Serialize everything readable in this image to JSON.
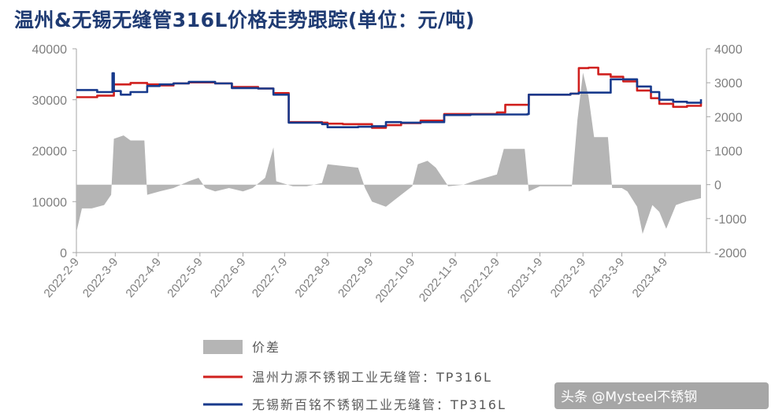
{
  "title": "温州&无锡无缝管316L价格走势跟踪(单位：元/吨)",
  "watermark": "头条 @Mysteel不锈钢",
  "colors": {
    "wenzhou": "#d0201e",
    "wuxi": "#183a8c",
    "diff": "#b5b5b5",
    "axis": "#a6a6a6"
  },
  "chart_data": {
    "type": "line",
    "y_left": {
      "min": 0,
      "max": 40000,
      "ticks": [
        0,
        10000,
        20000,
        30000,
        40000
      ]
    },
    "y_right": {
      "min": -2000,
      "max": 4000,
      "ticks": [
        -2000,
        -1000,
        0,
        1000,
        2000,
        3000,
        4000
      ]
    },
    "x_tick_labels": [
      "2022-2-9",
      "2022-3-9",
      "2022-4-9",
      "2022-5-9",
      "2022-6-9",
      "2022-7-9",
      "2022-8-9",
      "2022-9-9",
      "2022-10-9",
      "2022-11-9",
      "2022-12-9",
      "2023-1-9",
      "2023-2-9",
      "2023-3-9",
      "2023-4-9"
    ],
    "x_tick_dates": [
      "2022-02-09",
      "2022-03-09",
      "2022-04-09",
      "2022-05-09",
      "2022-06-09",
      "2022-07-09",
      "2022-08-09",
      "2022-09-09",
      "2022-10-09",
      "2022-11-09",
      "2022-12-09",
      "2023-01-09",
      "2023-02-09",
      "2023-03-09",
      "2023-04-09"
    ],
    "x_range": [
      "2022-02-09",
      "2023-05-09"
    ],
    "series": [
      {
        "name": "价差",
        "type": "area",
        "axis": "right",
        "points": [
          [
            "2022-02-09",
            -1400
          ],
          [
            "2022-02-13",
            -700
          ],
          [
            "2022-02-20",
            -700
          ],
          [
            "2022-03-01",
            -600
          ],
          [
            "2022-03-06",
            -300
          ],
          [
            "2022-03-08",
            1350
          ],
          [
            "2022-03-15",
            1450
          ],
          [
            "2022-03-20",
            1300
          ],
          [
            "2022-03-30",
            1300
          ],
          [
            "2022-04-01",
            -300
          ],
          [
            "2022-04-10",
            -200
          ],
          [
            "2022-04-20",
            -100
          ],
          [
            "2022-05-01",
            100
          ],
          [
            "2022-05-08",
            200
          ],
          [
            "2022-05-13",
            -100
          ],
          [
            "2022-05-20",
            -200
          ],
          [
            "2022-05-30",
            -100
          ],
          [
            "2022-06-09",
            -200
          ],
          [
            "2022-06-16",
            -100
          ],
          [
            "2022-06-25",
            200
          ],
          [
            "2022-07-01",
            1100
          ],
          [
            "2022-07-03",
            100
          ],
          [
            "2022-07-15",
            -50
          ],
          [
            "2022-07-25",
            -50
          ],
          [
            "2022-08-05",
            50
          ],
          [
            "2022-08-09",
            600
          ],
          [
            "2022-08-31",
            500
          ],
          [
            "2022-09-05",
            -100
          ],
          [
            "2022-09-10",
            -500
          ],
          [
            "2022-09-20",
            -650
          ],
          [
            "2022-10-01",
            -300
          ],
          [
            "2022-10-09",
            -50
          ],
          [
            "2022-10-13",
            600
          ],
          [
            "2022-10-20",
            700
          ],
          [
            "2022-10-26",
            500
          ],
          [
            "2022-11-04",
            -50
          ],
          [
            "2022-11-15",
            0
          ],
          [
            "2022-11-22",
            100
          ],
          [
            "2022-12-09",
            300
          ],
          [
            "2022-12-14",
            1050
          ],
          [
            "2022-12-29",
            1050
          ],
          [
            "2023-01-01",
            -200
          ],
          [
            "2023-01-09",
            -50
          ],
          [
            "2023-01-20",
            -50
          ],
          [
            "2023-02-01",
            -50
          ],
          [
            "2023-02-05",
            1900
          ],
          [
            "2023-02-09",
            3300
          ],
          [
            "2023-02-13",
            2600
          ],
          [
            "2023-02-17",
            1400
          ],
          [
            "2023-02-27",
            1400
          ],
          [
            "2023-03-02",
            -100
          ],
          [
            "2023-03-09",
            -100
          ],
          [
            "2023-03-13",
            -200
          ],
          [
            "2023-03-20",
            -650
          ],
          [
            "2023-03-24",
            -1450
          ],
          [
            "2023-03-31",
            -600
          ],
          [
            "2023-04-05",
            -800
          ],
          [
            "2023-04-10",
            -1300
          ],
          [
            "2023-04-17",
            -600
          ],
          [
            "2023-04-24",
            -500
          ],
          [
            "2023-05-05",
            -400
          ]
        ]
      },
      {
        "name": "温州力源不锈钢工业无缝管：TP316L",
        "type": "line",
        "axis": "left",
        "points": [
          [
            "2022-02-09",
            30500
          ],
          [
            "2022-02-24",
            30800
          ],
          [
            "2022-03-08",
            33000
          ],
          [
            "2022-03-20",
            33300
          ],
          [
            "2022-04-01",
            33000
          ],
          [
            "2022-04-10",
            32800
          ],
          [
            "2022-04-20",
            33200
          ],
          [
            "2022-05-01",
            33400
          ],
          [
            "2022-05-20",
            33200
          ],
          [
            "2022-06-01",
            32500
          ],
          [
            "2022-06-20",
            32200
          ],
          [
            "2022-07-01",
            31300
          ],
          [
            "2022-07-12",
            25600
          ],
          [
            "2022-08-05",
            25500
          ],
          [
            "2022-08-09",
            25300
          ],
          [
            "2022-08-20",
            25200
          ],
          [
            "2022-09-01",
            25200
          ],
          [
            "2022-09-10",
            24500
          ],
          [
            "2022-09-20",
            25000
          ],
          [
            "2022-10-01",
            25400
          ],
          [
            "2022-10-15",
            25900
          ],
          [
            "2022-11-01",
            27200
          ],
          [
            "2022-11-20",
            27200
          ],
          [
            "2022-12-09",
            27500
          ],
          [
            "2022-12-15",
            29000
          ],
          [
            "2022-12-31",
            29000
          ],
          [
            "2023-01-01",
            31000
          ],
          [
            "2023-01-31",
            31200
          ],
          [
            "2023-02-06",
            36200
          ],
          [
            "2023-02-13",
            36300
          ],
          [
            "2023-02-20",
            35000
          ],
          [
            "2023-03-01",
            34500
          ],
          [
            "2023-03-10",
            33600
          ],
          [
            "2023-03-20",
            31800
          ],
          [
            "2023-03-30",
            30300
          ],
          [
            "2023-04-05",
            29200
          ],
          [
            "2023-04-15",
            28600
          ],
          [
            "2023-04-25",
            28800
          ],
          [
            "2023-05-05",
            29500
          ]
        ]
      },
      {
        "name": "无锡新百铭不锈钢工业无缝管：TP316L",
        "type": "line",
        "axis": "left",
        "points": [
          [
            "2022-02-09",
            31900
          ],
          [
            "2022-02-24",
            31500
          ],
          [
            "2022-03-05",
            31500
          ],
          [
            "2022-03-07",
            35200
          ],
          [
            "2022-03-08",
            31700
          ],
          [
            "2022-03-13",
            31000
          ],
          [
            "2022-03-20",
            31500
          ],
          [
            "2022-04-01",
            32700
          ],
          [
            "2022-04-10",
            33000
          ],
          [
            "2022-04-20",
            33200
          ],
          [
            "2022-05-01",
            33500
          ],
          [
            "2022-05-20",
            33200
          ],
          [
            "2022-06-01",
            32300
          ],
          [
            "2022-06-20",
            32200
          ],
          [
            "2022-07-01",
            31000
          ],
          [
            "2022-07-12",
            25500
          ],
          [
            "2022-08-05",
            25200
          ],
          [
            "2022-08-09",
            24600
          ],
          [
            "2022-08-31",
            24700
          ],
          [
            "2022-09-10",
            24800
          ],
          [
            "2022-09-20",
            25600
          ],
          [
            "2022-10-01",
            25500
          ],
          [
            "2022-10-15",
            25600
          ],
          [
            "2022-11-01",
            27000
          ],
          [
            "2022-11-20",
            27100
          ],
          [
            "2022-12-09",
            27100
          ],
          [
            "2022-12-31",
            27200
          ],
          [
            "2023-01-01",
            31000
          ],
          [
            "2023-01-31",
            31200
          ],
          [
            "2023-02-06",
            31400
          ],
          [
            "2023-02-27",
            31400
          ],
          [
            "2023-03-01",
            34000
          ],
          [
            "2023-03-10",
            34000
          ],
          [
            "2023-03-20",
            32600
          ],
          [
            "2023-03-30",
            31500
          ],
          [
            "2023-04-05",
            30000
          ],
          [
            "2023-04-15",
            29600
          ],
          [
            "2023-04-25",
            29400
          ],
          [
            "2023-05-05",
            30100
          ]
        ]
      }
    ],
    "legend": {
      "position": "bottom"
    }
  }
}
